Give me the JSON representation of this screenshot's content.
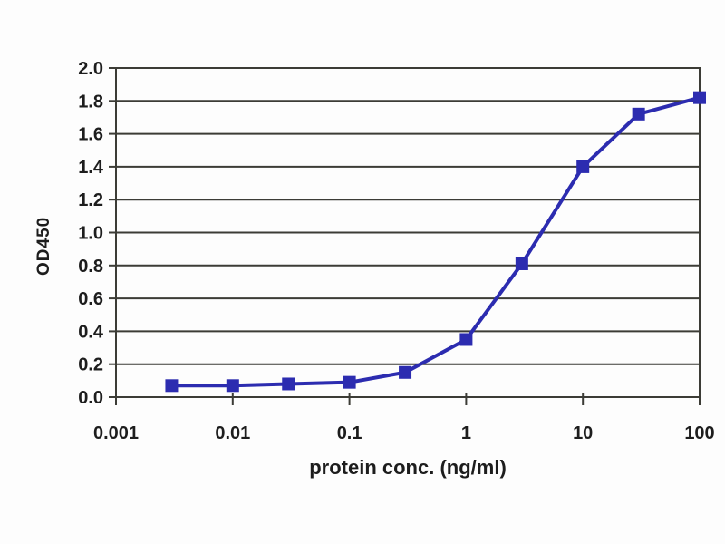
{
  "figure": {
    "background_color": "#fdfdfd"
  },
  "chart_data": {
    "type": "line",
    "title": "",
    "xlabel": "protein conc. (ng/ml)",
    "ylabel": "OD450",
    "x_scale": "log",
    "xlim": [
      0.001,
      100
    ],
    "ylim": [
      0.0,
      2.0
    ],
    "x_tick_values": [
      0.001,
      0.01,
      0.1,
      1,
      10,
      100
    ],
    "x_tick_labels": [
      "0.001",
      "0.01",
      "0.1",
      "1",
      "10",
      "100"
    ],
    "y_tick_values": [
      0.0,
      0.2,
      0.4,
      0.6,
      0.8,
      1.0,
      1.2,
      1.4,
      1.6,
      1.8,
      2.0
    ],
    "y_tick_labels": [
      "0.0",
      "0.2",
      "0.4",
      "0.6",
      "0.8",
      "1.0",
      "1.2",
      "1.4",
      "1.6",
      "1.8",
      "2.0"
    ],
    "grid": "horizontal",
    "legend": "none",
    "gridline_color": "#3c3c36",
    "series": [
      {
        "x": [
          0.003,
          0.01,
          0.03,
          0.1,
          0.3,
          1,
          3,
          10,
          30,
          100
        ],
        "y": [
          0.07,
          0.07,
          0.08,
          0.09,
          0.15,
          0.35,
          0.81,
          1.4,
          1.72,
          1.82
        ],
        "color": "#2c2cb0",
        "marker": "square",
        "marker_size": 14,
        "line_width": 4
      }
    ]
  }
}
